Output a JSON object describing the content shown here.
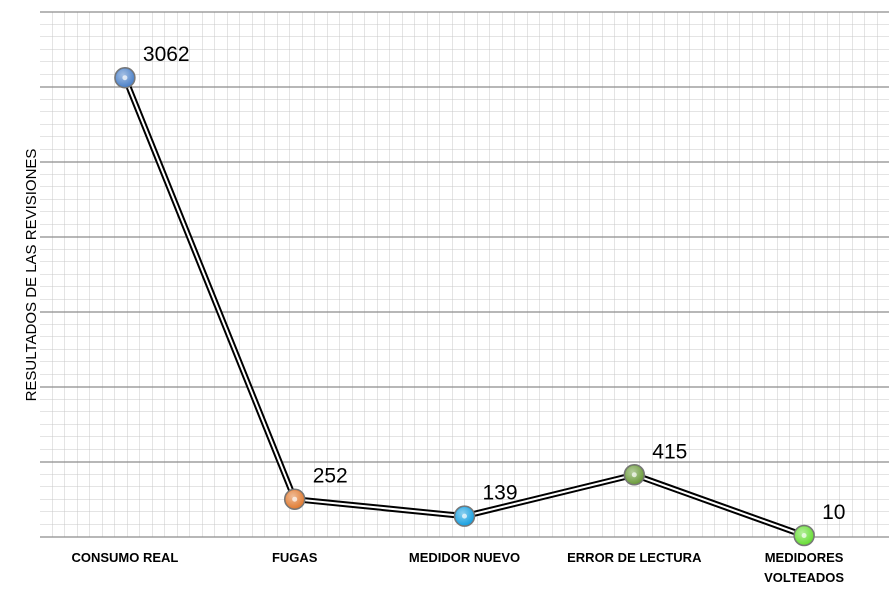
{
  "chart_data": {
    "type": "line",
    "ylabel": "RESULTADOS DE LAS REVISIONES",
    "categories": [
      "CONSUMO REAL",
      "FUGAS",
      "MEDIDOR NUEVO",
      "ERROR DE LECTURA",
      "MEDIDORES VOLTEADOS"
    ],
    "values": [
      3062,
      252,
      139,
      415,
      10
    ],
    "point_colors": [
      "#4a80c8",
      "#e07a30",
      "#159fe0",
      "#6a9a3a",
      "#66dd33"
    ],
    "ylim": [
      0,
      3500
    ],
    "yticks": [
      0,
      500,
      1000,
      1500,
      2000,
      2500,
      3000,
      3500
    ],
    "grid": true
  }
}
